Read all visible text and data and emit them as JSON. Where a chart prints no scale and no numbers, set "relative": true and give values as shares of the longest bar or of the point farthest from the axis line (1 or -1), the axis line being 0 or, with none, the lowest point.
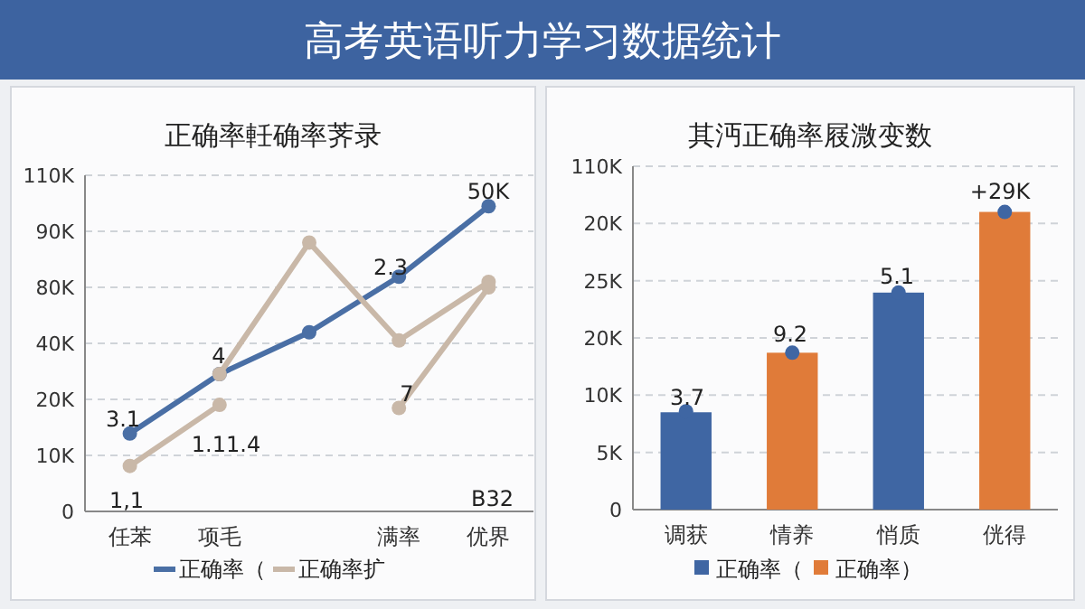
{
  "chart_data": [
    {
      "type": "other",
      "title": "高考英语听力学习数据统计"
    },
    {
      "type": "line",
      "title": "正确率軠确率荠录",
      "categories": [
        "任苯",
        "项毛",
        null,
        "满率",
        "优界"
      ],
      "relative": true,
      "grid": "y",
      "marker": "circle",
      "legend": "bottom",
      "series": [
        {
          "name": "正确率（",
          "color": "#4a6fa5",
          "values": [
            0.255,
            0.45,
            0.587,
            0.769,
            1
          ]
        },
        {
          "name": "正确率扩",
          "color": "#c9b8a8",
          "values": [
            0.149,
            0.349,
            null,
            null,
            null
          ]
        },
        {
          "color": "#c9b8a8",
          "values": [
            null,
            0.45,
            0.881,
            0.56,
            0.752
          ]
        },
        {
          "color": "#c9b8a8",
          "values": [
            null,
            null,
            null,
            0.339,
            0.734
          ]
        }
      ],
      "annotations": [
        "0",
        "10K",
        "20K",
        "40K",
        "80K",
        "90K",
        "110K",
        "3.1",
        "4",
        "2.3",
        "50K",
        "1,1",
        "1.11.4",
        "7",
        "B32"
      ]
    },
    {
      "type": "bar",
      "title": "其沔正确率屐溦变数",
      "categories": [
        "调获",
        "情养",
        "悄质",
        "侊得"
      ],
      "relative": true,
      "grid": "y",
      "legend": "bottom",
      "series": [
        {
          "name": "正确率（",
          "color": "#3f66a3",
          "values": [
            0.327,
            null,
            0.729,
            null
          ]
        },
        {
          "name": "正确率）",
          "color": "#e07b39",
          "values": [
            null,
            0.527,
            null,
            1
          ]
        },
        {
          "type": "scatter",
          "color": "#3f66a3",
          "values": [
            0.33,
            0.527,
            0.729,
            1
          ]
        }
      ],
      "annotations": [
        "0",
        "5K",
        "10K",
        "20K",
        "25K",
        "20K",
        "110K",
        "3.7",
        "9.2",
        "5.1",
        "+29K"
      ]
    }
  ]
}
